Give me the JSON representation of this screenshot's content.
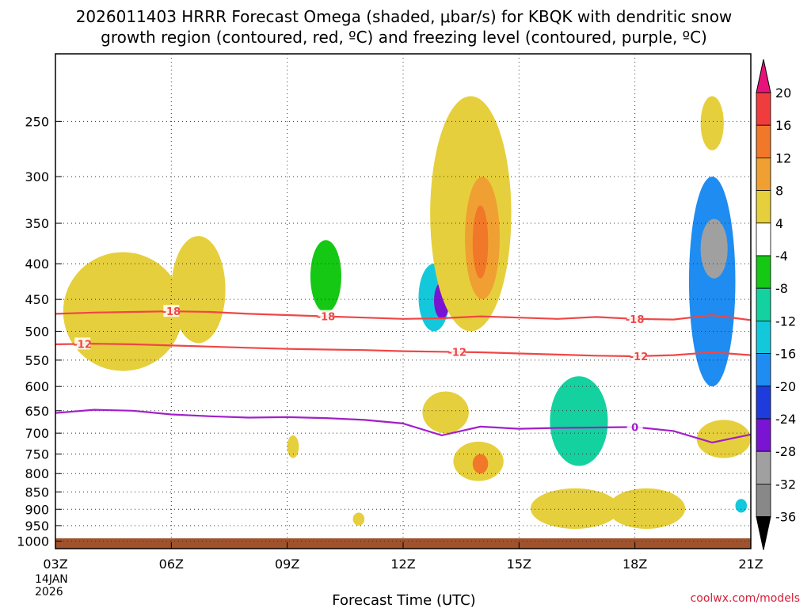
{
  "chart_data": {
    "type": "heatmap",
    "title_line1": "2026011403 HRRR Forecast Omega (shaded, μbar/s) for KBQK with dendritic snow",
    "title_line2": "growth region (contoured, red, ºC) and freezing level (contoured, purple, ºC)",
    "xlabel": "Forecast Time (UTC)",
    "credit": "coolwx.com/models",
    "x_ticks": [
      "03Z",
      "06Z",
      "09Z",
      "12Z",
      "15Z",
      "18Z",
      "21Z"
    ],
    "x_tick_hours": [
      3,
      6,
      9,
      12,
      15,
      18,
      21
    ],
    "x_date_line1": "14JAN",
    "x_date_line2": "2026",
    "xlim_hours": [
      3,
      21
    ],
    "y_ticks": [
      "250",
      "300",
      "350",
      "400",
      "450",
      "500",
      "550",
      "600",
      "650",
      "700",
      "750",
      "800",
      "850",
      "900",
      "950",
      "1000"
    ],
    "y_tick_values": [
      250,
      300,
      350,
      400,
      450,
      500,
      550,
      600,
      650,
      700,
      750,
      800,
      850,
      900,
      950,
      1000
    ],
    "ylim_hpa": [
      200,
      1025
    ],
    "y_scale": "log-pressure",
    "grid": "dotted",
    "colorbar": {
      "labels": [
        "20",
        "16",
        "12",
        "8",
        "4",
        "-4",
        "-8",
        "-12",
        "-16",
        "-20",
        "-24",
        "-28",
        "-32",
        "-36"
      ],
      "levels": [
        20,
        16,
        12,
        8,
        4,
        -4,
        -8,
        -12,
        -16,
        -20,
        -24,
        -28,
        -32,
        -36
      ],
      "colors": [
        "#f0147a",
        "#f03c3c",
        "#f07828",
        "#f0a032",
        "#e6cf3c",
        "#ffffff",
        "#14c814",
        "#14d2a0",
        "#14c8dc",
        "#1e8cf0",
        "#1e3cdc",
        "#7814d2",
        "#a0a0a0",
        "#000000"
      ],
      "top_arrow_color": "#e6147a",
      "bottom_arrow_color": "#000000"
    },
    "series": [
      {
        "name": "-18",
        "color": "#f04646",
        "label": "-18",
        "x": [
          3,
          4,
          5,
          6,
          7,
          8,
          9,
          10,
          11,
          12,
          13,
          14,
          15,
          16,
          17,
          18,
          19,
          20,
          21
        ],
        "y": [
          472,
          470,
          469,
          468,
          469,
          472,
          474,
          476,
          478,
          480,
          479,
          476,
          478,
          480,
          477,
          480,
          481,
          474,
          482
        ]
      },
      {
        "name": "-12",
        "color": "#f04646",
        "label": "-12",
        "x": [
          3,
          4,
          5,
          6,
          7,
          8,
          9,
          10,
          11,
          12,
          13,
          14,
          15,
          16,
          17,
          18,
          19,
          20,
          21
        ],
        "y": [
          522,
          521,
          522,
          524,
          526,
          528,
          530,
          531,
          532,
          534,
          535,
          536,
          538,
          540,
          542,
          543,
          541,
          536,
          541
        ]
      },
      {
        "name": "0",
        "color": "#a020c8",
        "label": "0",
        "x": [
          3,
          4,
          5,
          6,
          7,
          8,
          9,
          10,
          11,
          12,
          13,
          14,
          15,
          16,
          17,
          18,
          19,
          20,
          21
        ],
        "y": [
          655,
          648,
          650,
          658,
          662,
          665,
          664,
          666,
          670,
          678,
          705,
          685,
          690,
          688,
          687,
          686,
          695,
          722,
          703
        ]
      }
    ],
    "features": [
      {
        "name": "dendritic-red",
        "type": "contour",
        "label_positions_hours": [
          6.1,
          9.9,
          15.1,
          18.1
        ]
      }
    ],
    "omega_regions": [
      {
        "x": 3.2,
        "x2": 6.3,
        "y": 385,
        "y2": 570,
        "v": 4
      },
      {
        "x": 6.0,
        "x2": 7.4,
        "y": 365,
        "y2": 520,
        "v": 4
      },
      {
        "x": 4.8,
        "x2": 6.4,
        "y": 670,
        "y2": 860,
        "v": -4
      },
      {
        "x": 9.0,
        "x2": 9.3,
        "y": 705,
        "y2": 760,
        "v": 4
      },
      {
        "x": 8.7,
        "x2": 10.9,
        "y": 330,
        "y2": 600,
        "v": -4
      },
      {
        "x": 9.6,
        "x2": 10.4,
        "y": 370,
        "y2": 470,
        "v": -8
      },
      {
        "x": 7.3,
        "x2": 8.6,
        "y": 930,
        "y2": 970,
        "v": -4
      },
      {
        "x": 10.7,
        "x2": 11.0,
        "y": 910,
        "y2": 950,
        "v": 4
      },
      {
        "x": 10.8,
        "x2": 12.5,
        "y": 600,
        "y2": 965,
        "v": -4
      },
      {
        "x": 11.7,
        "x2": 13.3,
        "y": 355,
        "y2": 640,
        "v": -4
      },
      {
        "x": 12.4,
        "x2": 13.2,
        "y": 400,
        "y2": 500,
        "v": -16
      },
      {
        "x": 12.8,
        "x2": 13.2,
        "y": 425,
        "y2": 480,
        "v": -28
      },
      {
        "x": 12.7,
        "x2": 14.8,
        "y": 230,
        "y2": 500,
        "v": 4
      },
      {
        "x": 13.6,
        "x2": 14.5,
        "y": 300,
        "y2": 450,
        "v": 8
      },
      {
        "x": 13.8,
        "x2": 14.2,
        "y": 330,
        "y2": 420,
        "v": 12
      },
      {
        "x": 13.5,
        "x2": 15.2,
        "y": 560,
        "y2": 690,
        "v": -4
      },
      {
        "x": 12.5,
        "x2": 13.7,
        "y": 610,
        "y2": 700,
        "v": 4
      },
      {
        "x": 13.3,
        "x2": 14.6,
        "y": 720,
        "y2": 820,
        "v": 4
      },
      {
        "x": 13.8,
        "x2": 14.2,
        "y": 750,
        "y2": 800,
        "v": 12
      },
      {
        "x": 15.2,
        "x2": 18.3,
        "y": 540,
        "y2": 840,
        "v": -4
      },
      {
        "x": 15.8,
        "x2": 17.3,
        "y": 580,
        "y2": 780,
        "v": -12
      },
      {
        "x": 15.3,
        "x2": 17.6,
        "y": 840,
        "y2": 960,
        "v": 4
      },
      {
        "x": 17.3,
        "x2": 19.3,
        "y": 840,
        "y2": 960,
        "v": 4
      },
      {
        "x": 16.0,
        "x2": 18.1,
        "y": 210,
        "y2": 295,
        "v": -4
      },
      {
        "x": 18.9,
        "x2": 21.0,
        "y": 260,
        "y2": 650,
        "v": -4
      },
      {
        "x": 19.4,
        "x2": 20.6,
        "y": 300,
        "y2": 600,
        "v": -20
      },
      {
        "x": 19.7,
        "x2": 20.4,
        "y": 345,
        "y2": 420,
        "v": -32
      },
      {
        "x": 19.6,
        "x2": 21.0,
        "y": 670,
        "y2": 760,
        "v": 4
      },
      {
        "x": 20.1,
        "x2": 21.0,
        "y": 850,
        "y2": 960,
        "v": -4
      },
      {
        "x": 20.6,
        "x2": 20.9,
        "y": 870,
        "y2": 910,
        "v": -16
      },
      {
        "x": 19.7,
        "x2": 20.3,
        "y": 230,
        "y2": 275,
        "v": 4
      }
    ]
  }
}
